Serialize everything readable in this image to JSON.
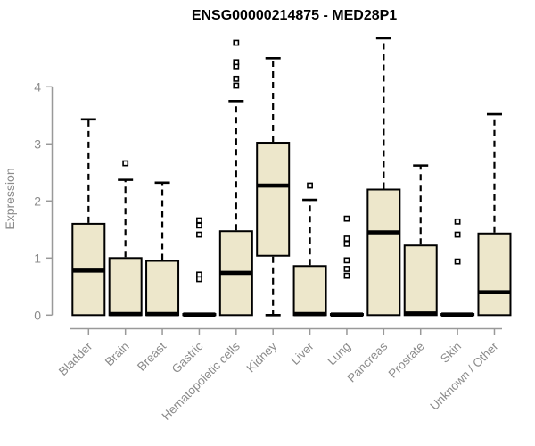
{
  "chart": {
    "title": "ENSG00000214875 - MED28P1",
    "ylabel": "Expression"
  },
  "chart_data": {
    "type": "boxplot",
    "title": "ENSG00000214875 - MED28P1",
    "xlabel": "",
    "ylabel": "Expression",
    "ylim": [
      0,
      4.9
    ],
    "yticks": [
      0,
      1,
      2,
      3,
      4
    ],
    "grid": false,
    "legend": "none",
    "categories": [
      "Bladder",
      "Brain",
      "Breast",
      "Gastric",
      "Hematopoietic cells",
      "Kidney",
      "Liver",
      "Lung",
      "Pancreas",
      "Prostate",
      "Skin",
      "Unknown / Other"
    ],
    "series": [
      {
        "name": "Bladder",
        "whisker_low": 0,
        "q1": 0,
        "median": 0.78,
        "q3": 1.6,
        "whisker_high": 3.43,
        "outliers": []
      },
      {
        "name": "Brain",
        "whisker_low": 0,
        "q1": 0,
        "median": 0.02,
        "q3": 1.0,
        "whisker_high": 2.37,
        "outliers": [
          2.66
        ]
      },
      {
        "name": "Breast",
        "whisker_low": 0,
        "q1": 0,
        "median": 0.02,
        "q3": 0.95,
        "whisker_high": 2.32,
        "outliers": []
      },
      {
        "name": "Gastric",
        "whisker_low": 0,
        "q1": 0,
        "median": 0.01,
        "q3": 0.02,
        "whisker_high": 0.02,
        "outliers": [
          1.66,
          1.57,
          1.41,
          0.71,
          0.63
        ]
      },
      {
        "name": "Hematopoietic cells",
        "whisker_low": 0,
        "q1": 0,
        "median": 0.74,
        "q3": 1.47,
        "whisker_high": 3.75,
        "outliers": [
          4.02,
          4.14,
          4.36,
          4.43,
          4.77
        ]
      },
      {
        "name": "Kidney",
        "whisker_low": 0,
        "q1": 1.04,
        "median": 2.27,
        "q3": 3.02,
        "whisker_high": 4.5,
        "outliers": []
      },
      {
        "name": "Liver",
        "whisker_low": 0,
        "q1": 0,
        "median": 0.02,
        "q3": 0.86,
        "whisker_high": 2.02,
        "outliers": [
          2.27
        ]
      },
      {
        "name": "Lung",
        "whisker_low": 0,
        "q1": 0,
        "median": 0.01,
        "q3": 0.02,
        "whisker_high": 0.02,
        "outliers": [
          1.69,
          1.34,
          1.25,
          0.96,
          0.81,
          0.69
        ]
      },
      {
        "name": "Pancreas",
        "whisker_low": 0,
        "q1": 0,
        "median": 1.45,
        "q3": 2.2,
        "whisker_high": 4.85,
        "outliers": []
      },
      {
        "name": "Prostate",
        "whisker_low": 0,
        "q1": 0,
        "median": 0.03,
        "q3": 1.22,
        "whisker_high": 2.62,
        "outliers": []
      },
      {
        "name": "Skin",
        "whisker_low": 0,
        "q1": 0,
        "median": 0.01,
        "q3": 0.02,
        "whisker_high": 0.02,
        "outliers": [
          1.64,
          1.41,
          0.94
        ]
      },
      {
        "name": "Unknown / Other",
        "whisker_low": 0,
        "q1": 0,
        "median": 0.4,
        "q3": 1.43,
        "whisker_high": 3.52,
        "outliers": []
      }
    ],
    "colors": {
      "box_fill": "#ede7cb",
      "box_stroke": "#000000",
      "median_color": "#000000",
      "whisker_color": "#000000",
      "outlier_stroke": "#000000",
      "axis_color": "#999999",
      "tick_text_color": "#8b8b8b",
      "title_color": "#000000",
      "background": "#ffffff"
    }
  }
}
